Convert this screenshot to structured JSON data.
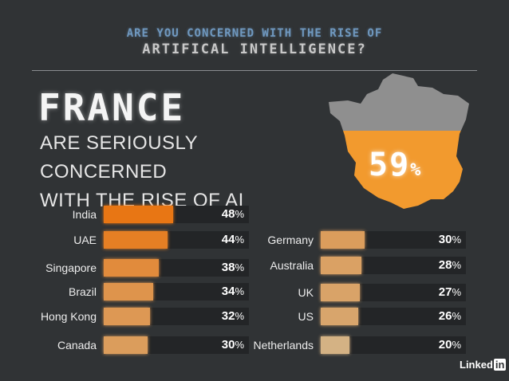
{
  "header": {
    "question_line1": "ARE YOU CONCERNED WITH THE RISE OF",
    "question_line2": "ARTIFICAL INTELLIGENCE?"
  },
  "highlight": {
    "country": "FRANCE",
    "subtitle_line1": "ARE SERIOUSLY CONCERNED",
    "subtitle_line2": "WITH THE RISE OF AI",
    "value": "59",
    "symbol": "%"
  },
  "logo": {
    "text": "Linked",
    "in": "in"
  },
  "colors": {
    "background": "#303335",
    "map_top": "#8f8f8f",
    "map_fill": "#f29a2e",
    "track": "#232527"
  },
  "chart_data": {
    "type": "bar",
    "unit": "%",
    "xlim": [
      0,
      100
    ],
    "groups": [
      {
        "categories": [
          "India",
          "UAE",
          "Singapore",
          "Brazil",
          "Hong Kong",
          "Canada"
        ],
        "values": [
          48,
          44,
          38,
          34,
          32,
          30
        ]
      },
      {
        "categories": [
          "Germany",
          "Australia",
          "UK",
          "US",
          "Netherlands"
        ],
        "values": [
          30,
          28,
          27,
          26,
          20
        ]
      }
    ]
  }
}
